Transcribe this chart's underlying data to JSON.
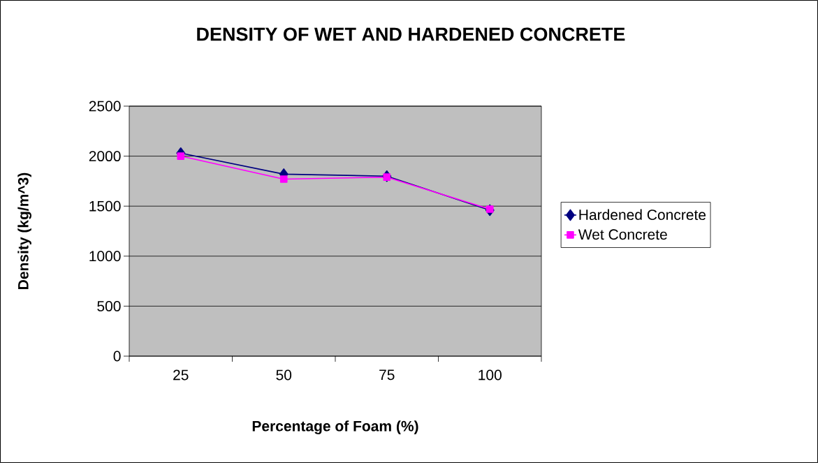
{
  "chart_data": {
    "type": "line",
    "title": "DENSITY OF WET AND HARDENED CONCRETE",
    "xlabel": "Percentage of Foam (%)",
    "ylabel": "Density (kg/m^3)",
    "categories": [
      "25",
      "50",
      "75",
      "100"
    ],
    "series": [
      {
        "name": "Hardened Concrete",
        "color": "#000080",
        "marker": "diamond",
        "values": [
          2030,
          1820,
          1800,
          1460
        ]
      },
      {
        "name": "Wet Concrete",
        "color": "#ff00ff",
        "marker": "square",
        "values": [
          2000,
          1770,
          1790,
          1470
        ]
      }
    ],
    "ylim": [
      0,
      2500
    ],
    "yticks": [
      0,
      500,
      1000,
      1500,
      2000,
      2500
    ],
    "grid": "y",
    "legend": "right",
    "line_style": "solid"
  }
}
